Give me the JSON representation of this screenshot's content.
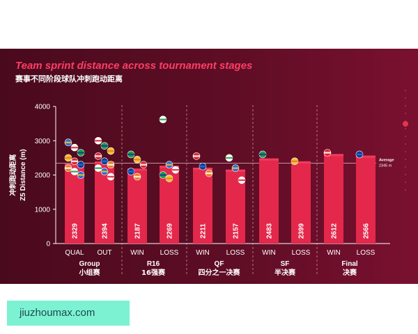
{
  "chart_data": {
    "type": "bar",
    "title": "Team sprint distance across tournament stages",
    "subtitle": "赛事不同阶段球队冲刺跑动距离",
    "ylabel_cn": "冲刺跑动距离",
    "ylabel": "Z5 Distance (m)",
    "ylim": [
      0,
      4000
    ],
    "yticks": [
      "0",
      "1000",
      "2000",
      "3000",
      "4000"
    ],
    "categories": [
      "QUAL",
      "OUT",
      "WIN",
      "LOSS",
      "WIN",
      "LOSS",
      "WIN",
      "LOSS",
      "WIN",
      "LOSS"
    ],
    "values": [
      2329,
      2394,
      2187,
      2269,
      2211,
      2157,
      2483,
      2399,
      2612,
      2566
    ],
    "value_labels": [
      "2329",
      "2394",
      "2187",
      "2269",
      "2211",
      "2157",
      "2483",
      "2399",
      "2612",
      "2566"
    ],
    "groups": [
      {
        "name_en": "Group",
        "name_cn": "小组赛",
        "start": 0,
        "end": 1
      },
      {
        "name_en": "R16",
        "name_cn": "16强赛",
        "start": 2,
        "end": 3
      },
      {
        "name_en": "QF",
        "name_cn": "四分之一决赛",
        "start": 4,
        "end": 5
      },
      {
        "name_en": "SF",
        "name_cn": "半决赛",
        "start": 6,
        "end": 7
      },
      {
        "name_en": "Final",
        "name_cn": "决赛",
        "start": 8,
        "end": 9
      }
    ],
    "average": {
      "value": 2345,
      "label": "Average",
      "value_label": "2345 m"
    },
    "grid": false,
    "colors": {
      "bar": "#e3284b",
      "bar_top": "#f03b5c",
      "text": "#ffffff",
      "title": "#ff3e63"
    }
  },
  "watermark": "jiuzhoumax.com"
}
